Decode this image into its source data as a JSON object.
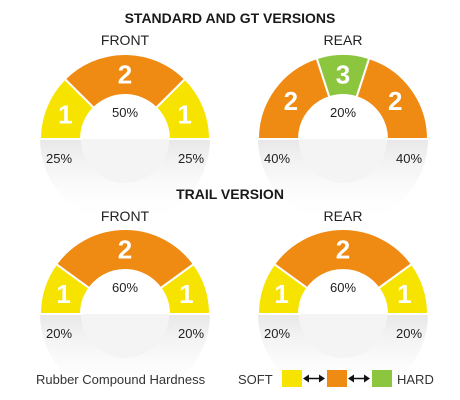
{
  "sections": [
    {
      "title": "STANDARD AND GT VERSIONS",
      "gauges": [
        {
          "label": "FRONT",
          "segments": [
            {
              "value": "1",
              "level": "soft",
              "percent": "25%",
              "share": 25
            },
            {
              "value": "2",
              "level": "medium",
              "percent": "50%",
              "share": 50
            },
            {
              "value": "1",
              "level": "soft",
              "percent": "25%",
              "share": 25
            }
          ]
        },
        {
          "label": "REAR",
          "segments": [
            {
              "value": "2",
              "level": "medium",
              "percent": "40%",
              "share": 40
            },
            {
              "value": "3",
              "level": "hard",
              "percent": "20%",
              "share": 20
            },
            {
              "value": "2",
              "level": "medium",
              "percent": "40%",
              "share": 40
            }
          ]
        }
      ]
    },
    {
      "title": "TRAIL VERSION",
      "gauges": [
        {
          "label": "FRONT",
          "segments": [
            {
              "value": "1",
              "level": "soft",
              "percent": "20%",
              "share": 20
            },
            {
              "value": "2",
              "level": "medium",
              "percent": "60%",
              "share": 60
            },
            {
              "value": "1",
              "level": "soft",
              "percent": "20%",
              "share": 20
            }
          ]
        },
        {
          "label": "REAR",
          "segments": [
            {
              "value": "1",
              "level": "soft",
              "percent": "20%",
              "share": 20
            },
            {
              "value": "2",
              "level": "medium",
              "percent": "60%",
              "share": 60
            },
            {
              "value": "1",
              "level": "soft",
              "percent": "20%",
              "share": 20
            }
          ]
        }
      ]
    }
  ],
  "legend": {
    "label": "Rubber Compound Hardness",
    "soft_label": "SOFT",
    "hard_label": "HARD"
  },
  "colors": {
    "soft": "#f7e300",
    "medium": "#ef8a12",
    "hard": "#8cc63f",
    "shadow": "#e8e8e8"
  }
}
